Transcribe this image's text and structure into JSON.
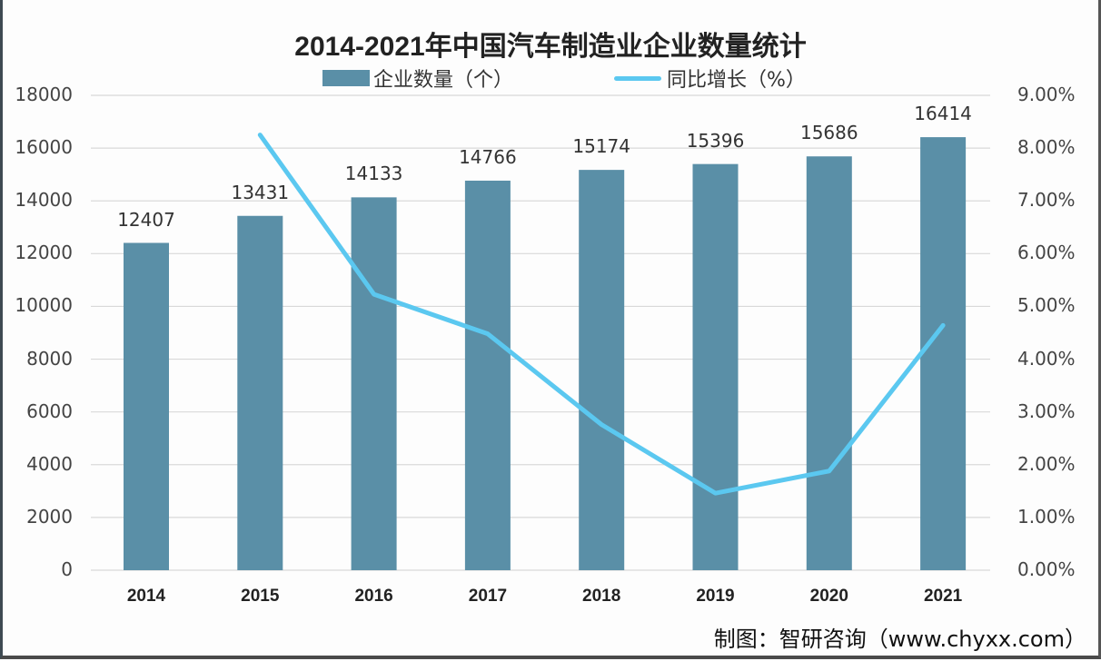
{
  "chart_data": {
    "type": "bar+line",
    "title": "2014-2021年中国汽车制造业企业数量统计",
    "categories": [
      "2014",
      "2015",
      "2016",
      "2017",
      "2018",
      "2019",
      "2020",
      "2021"
    ],
    "series": [
      {
        "name": "企业数量（个）",
        "type": "bar",
        "axis": "left",
        "color": "#5a8fa7",
        "values": [
          12407,
          13431,
          14133,
          14766,
          15174,
          15396,
          15686,
          16414
        ]
      },
      {
        "name": "同比增长（%）",
        "type": "line",
        "axis": "right",
        "color": "#5bc8f0",
        "values": [
          null,
          8.25,
          5.23,
          4.48,
          2.76,
          1.46,
          1.88,
          4.64
        ]
      }
    ],
    "left_axis": {
      "ylim": [
        0,
        18000
      ],
      "ticks": [
        "0",
        "2000",
        "4000",
        "6000",
        "8000",
        "10000",
        "12000",
        "14000",
        "16000",
        "18000"
      ]
    },
    "right_axis": {
      "ylim": [
        0,
        9
      ],
      "ticks": [
        "0.00%",
        "1.00%",
        "2.00%",
        "3.00%",
        "4.00%",
        "5.00%",
        "6.00%",
        "7.00%",
        "8.00%",
        "9.00%"
      ]
    },
    "legend_position": "top",
    "grid": true,
    "source": "制图：智研咨询（www.chyxx.com）"
  },
  "title": "2014-2021年中国汽车制造业企业数量统计",
  "legend": {
    "bar_label": "企业数量（个）",
    "line_label": "同比增长（%）"
  },
  "source": "制图：智研咨询（www.chyxx.com）",
  "left_ticks": [
    "0",
    "2000",
    "4000",
    "6000",
    "8000",
    "10000",
    "12000",
    "14000",
    "16000",
    "18000"
  ],
  "right_ticks": [
    "0.00%",
    "1.00%",
    "2.00%",
    "3.00%",
    "4.00%",
    "5.00%",
    "6.00%",
    "7.00%",
    "8.00%",
    "9.00%"
  ],
  "x_labels": [
    "2014",
    "2015",
    "2016",
    "2017",
    "2018",
    "2019",
    "2020",
    "2021"
  ],
  "bar_labels": [
    "12407",
    "13431",
    "14133",
    "14766",
    "15174",
    "15396",
    "15686",
    "16414"
  ]
}
